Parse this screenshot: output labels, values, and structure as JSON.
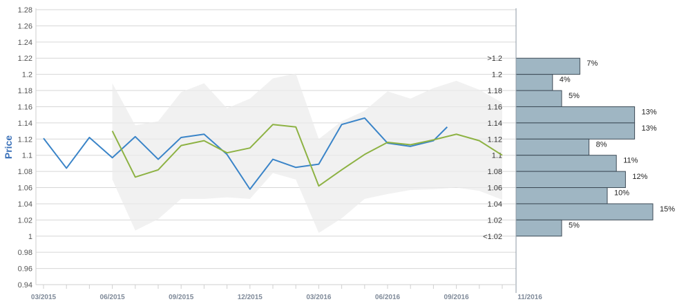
{
  "chart_data": {
    "type": "line",
    "ylabel": "Price",
    "ylim": [
      0.94,
      1.28
    ],
    "y_ticks": [
      "0.94",
      "0.96",
      "0.98",
      "1",
      "1.02",
      "1.04",
      "1.06",
      "1.08",
      "1.1",
      "1.12",
      "1.14",
      "1.16",
      "1.18",
      "1.2",
      "1.22",
      "1.24",
      "1.26",
      "1.28"
    ],
    "x_ticks": [
      "03/2015",
      "06/2015",
      "09/2015",
      "12/2015",
      "03/2016",
      "06/2016",
      "09/2016",
      "11/2016"
    ],
    "xlim_month_index": [
      0,
      20
    ],
    "grid": true,
    "colors": {
      "actual": "#3a84c8",
      "forecast": "#8db243",
      "band": "#ebebeb",
      "histogram": "#9fb6c3",
      "histogram_edge": "#3c4a55",
      "ylabel": "#3a70b8"
    },
    "series": [
      {
        "style": "actual",
        "points": [
          [
            0,
            1.121
          ],
          [
            1,
            1.084
          ],
          [
            2,
            1.122
          ],
          [
            3,
            1.097
          ],
          [
            4,
            1.123
          ],
          [
            5,
            1.095
          ],
          [
            6,
            1.122
          ],
          [
            7,
            1.126
          ],
          [
            8,
            1.101
          ],
          [
            9,
            1.058
          ],
          [
            10,
            1.095
          ],
          [
            11,
            1.085
          ],
          [
            12,
            1.089
          ],
          [
            13,
            1.138
          ],
          [
            14,
            1.146
          ],
          [
            15,
            1.115
          ],
          [
            16,
            1.111
          ],
          [
            17,
            1.118
          ],
          [
            17.6,
            1.135
          ]
        ]
      },
      {
        "style": "forecast",
        "points": [
          [
            3,
            1.13
          ],
          [
            4,
            1.073
          ],
          [
            5,
            1.082
          ],
          [
            6,
            1.112
          ],
          [
            7,
            1.118
          ],
          [
            8,
            1.103
          ],
          [
            9,
            1.109
          ],
          [
            10,
            1.138
          ],
          [
            11,
            1.135
          ],
          [
            12,
            1.062
          ],
          [
            13,
            1.082
          ],
          [
            14,
            1.101
          ],
          [
            15,
            1.116
          ],
          [
            16,
            1.113
          ],
          [
            17,
            1.119
          ],
          [
            18,
            1.126
          ],
          [
            19,
            1.118
          ],
          [
            20,
            1.1
          ]
        ]
      }
    ],
    "band": {
      "upper": [
        [
          3,
          1.189
        ],
        [
          4,
          1.137
        ],
        [
          5,
          1.142
        ],
        [
          6,
          1.178
        ],
        [
          7,
          1.189
        ],
        [
          8,
          1.158
        ],
        [
          9,
          1.17
        ],
        [
          10,
          1.195
        ],
        [
          11,
          1.201
        ],
        [
          12,
          1.12
        ],
        [
          13,
          1.142
        ],
        [
          14,
          1.155
        ],
        [
          15,
          1.179
        ],
        [
          16,
          1.17
        ],
        [
          17,
          1.183
        ],
        [
          18,
          1.192
        ],
        [
          19,
          1.181
        ],
        [
          20,
          1.165
        ]
      ],
      "lower": [
        [
          3,
          1.07
        ],
        [
          4,
          1.007
        ],
        [
          5,
          1.021
        ],
        [
          6,
          1.046
        ],
        [
          7,
          1.046
        ],
        [
          8,
          1.048
        ],
        [
          9,
          1.046
        ],
        [
          10,
          1.078
        ],
        [
          11,
          1.07
        ],
        [
          12,
          1.004
        ],
        [
          13,
          1.022
        ],
        [
          14,
          1.046
        ],
        [
          15,
          1.052
        ],
        [
          16,
          1.057
        ],
        [
          17,
          1.058
        ],
        [
          18,
          1.06
        ],
        [
          19,
          1.056
        ],
        [
          20,
          1.045
        ]
      ]
    },
    "histogram": {
      "bins": [
        {
          "label": ">1.2",
          "low": 1.2,
          "high": 1.22,
          "percent": 7,
          "percent_label": "7%"
        },
        {
          "label": "1.2",
          "low": 1.18,
          "high": 1.2,
          "percent": 4,
          "percent_label": "4%"
        },
        {
          "label": "1.18",
          "low": 1.16,
          "high": 1.18,
          "percent": 5,
          "percent_label": "5%"
        },
        {
          "label": "1.16",
          "low": 1.14,
          "high": 1.16,
          "percent": 13,
          "percent_label": "13%"
        },
        {
          "label": "1.14",
          "low": 1.12,
          "high": 1.14,
          "percent": 13,
          "percent_label": "13%"
        },
        {
          "label": "1.12",
          "low": 1.1,
          "high": 1.12,
          "percent": 8,
          "percent_label": "8%"
        },
        {
          "label": "1.1",
          "low": 1.08,
          "high": 1.1,
          "percent": 11,
          "percent_label": "11%"
        },
        {
          "label": "1.08",
          "low": 1.06,
          "high": 1.08,
          "percent": 12,
          "percent_label": "12%"
        },
        {
          "label": "1.06",
          "low": 1.04,
          "high": 1.06,
          "percent": 10,
          "percent_label": "10%"
        },
        {
          "label": "1.04",
          "low": 1.02,
          "high": 1.04,
          "percent": 15,
          "percent_label": "15%"
        },
        {
          "label": "1.02",
          "low": 1.0,
          "high": 1.02,
          "percent": 5,
          "percent_label": "5%"
        },
        {
          "label": "<1.02",
          "low": 1.0,
          "high": 1.0,
          "percent": 0,
          "percent_label": ""
        }
      ]
    }
  }
}
